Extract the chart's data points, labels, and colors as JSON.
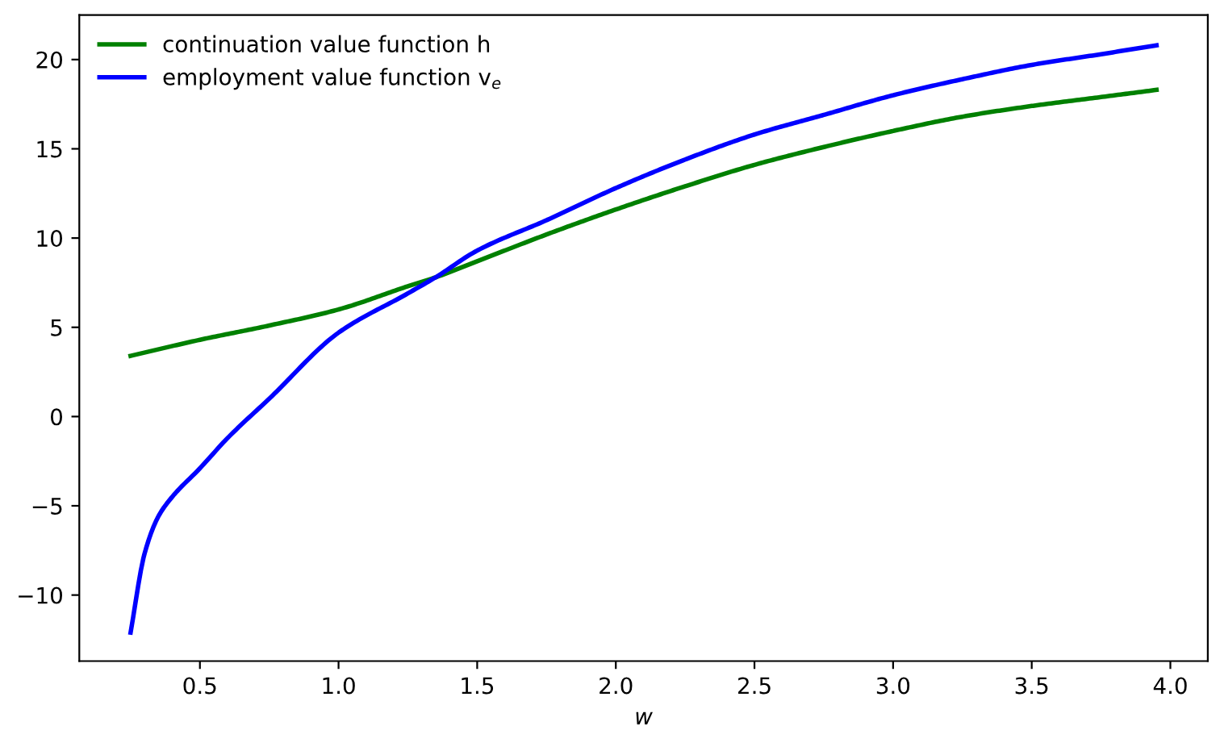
{
  "chart_data": {
    "type": "line",
    "xlabel": "w",
    "xlim": [
      0.065,
      4.135
    ],
    "xticks": [
      {
        "value": 0.5,
        "label": "0.5"
      },
      {
        "value": 1.0,
        "label": "1.0"
      },
      {
        "value": 1.5,
        "label": "1.5"
      },
      {
        "value": 2.0,
        "label": "2.0"
      },
      {
        "value": 2.5,
        "label": "2.5"
      },
      {
        "value": 3.0,
        "label": "3.0"
      },
      {
        "value": 3.5,
        "label": "3.5"
      },
      {
        "value": 4.0,
        "label": "4.0"
      }
    ],
    "ylim": [
      -13.7,
      22.5
    ],
    "yticks": [
      {
        "value": -10,
        "label": "−10"
      },
      {
        "value": -5,
        "label": "−5"
      },
      0,
      5,
      10,
      15,
      20
    ],
    "grid": false,
    "legend": "top left",
    "marker": "none",
    "line_style": "solid",
    "series": [
      {
        "name": "continuation value function h",
        "color": "#008000",
        "x": [
          0.25,
          0.5,
          0.75,
          1.0,
          1.25,
          1.35,
          1.5,
          1.75,
          2.0,
          2.25,
          2.5,
          2.75,
          3.0,
          3.25,
          3.5,
          3.75,
          3.95
        ],
        "values": [
          3.4,
          4.3,
          5.1,
          6.0,
          7.3,
          7.8,
          8.7,
          10.2,
          11.6,
          12.9,
          14.1,
          15.1,
          16.0,
          16.8,
          17.4,
          17.9,
          18.3
        ]
      },
      {
        "name": "employment value function v$_{e}$",
        "color": "#0000ff",
        "x": [
          0.25,
          0.3,
          0.35,
          0.4,
          0.5,
          0.6,
          0.75,
          1.0,
          1.25,
          1.35,
          1.5,
          1.75,
          2.0,
          2.25,
          2.5,
          2.75,
          3.0,
          3.25,
          3.5,
          3.75,
          3.95
        ],
        "values": [
          -12.1,
          -7.7,
          -5.6,
          -4.5,
          -2.9,
          -1.2,
          1.0,
          4.7,
          6.9,
          7.8,
          9.3,
          11.0,
          12.8,
          14.4,
          15.8,
          16.9,
          18.0,
          18.9,
          19.7,
          20.3,
          20.8
        ]
      }
    ]
  }
}
